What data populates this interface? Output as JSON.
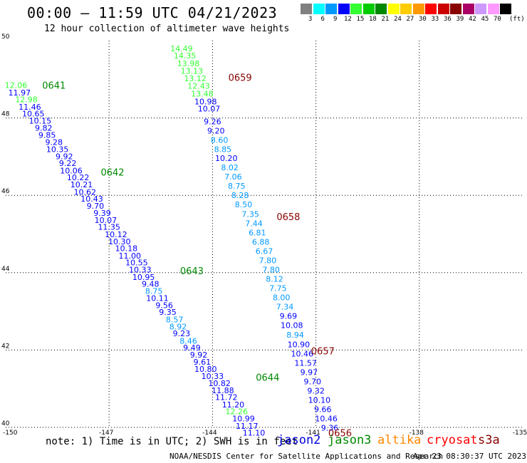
{
  "header": {
    "title": "00:00 — 11:59 UTC 04/21/2023",
    "subtitle": "12 hour collection of altimeter wave heights"
  },
  "legend": {
    "bins": [
      {
        "label": "3",
        "color": "#808080"
      },
      {
        "label": "6",
        "color": "#00ffff"
      },
      {
        "label": "9",
        "color": "#0099ff"
      },
      {
        "label": "12",
        "color": "#0000ff"
      },
      {
        "label": "15",
        "color": "#33ff33"
      },
      {
        "label": "18",
        "color": "#00cc00"
      },
      {
        "label": "21",
        "color": "#008800"
      },
      {
        "label": "24",
        "color": "#ffff00"
      },
      {
        "label": "27",
        "color": "#ffcc00"
      },
      {
        "label": "30",
        "color": "#ff9900"
      },
      {
        "label": "33",
        "color": "#ff0000"
      },
      {
        "label": "36",
        "color": "#cc0000"
      },
      {
        "label": "39",
        "color": "#880000"
      },
      {
        "label": "42",
        "color": "#aa0066"
      },
      {
        "label": "45",
        "color": "#cc99ff"
      },
      {
        "label": "70",
        "color": "#ff99ff"
      },
      {
        "label": "",
        "color": "#000000"
      }
    ],
    "unit": "(ft)"
  },
  "footer": {
    "note": "note: 1) Time is in UTC; 2) SWH is in feet",
    "credit": "NOAA/NESDIS Center for Satellite Applications and Research",
    "stamp": "Apr 23 08:30:37 UTC 2023",
    "satellites": [
      {
        "name": "jason2",
        "color": "#0000dd"
      },
      {
        "name": "jason3",
        "color": "#008800"
      },
      {
        "name": "altika",
        "color": "#ff8800"
      },
      {
        "name": "cryosat",
        "color": "#ff0000"
      },
      {
        "name": "s3a",
        "color": "#880000"
      }
    ]
  },
  "chart_data": {
    "type": "scatter",
    "title": "00:00 — 11:59 UTC 04/21/2023",
    "subtitle": "12 hour collection of altimeter wave heights",
    "xlim": [
      -150,
      -135
    ],
    "ylim": [
      40,
      50
    ],
    "xticks": [
      "-150",
      "-147",
      "-144",
      "-141",
      "-138",
      "-135"
    ],
    "yticks": [
      "40",
      "42",
      "44",
      "46",
      "48",
      "50"
    ],
    "grid": true,
    "passes": [
      {
        "satellite": "jason3",
        "time_labels": [
          {
            "text": "0641",
            "x": -148.6,
            "y": 48.85
          },
          {
            "text": "0642",
            "x": -146.9,
            "y": 46.6
          },
          {
            "text": "0643",
            "x": -144.6,
            "y": 44.05
          },
          {
            "text": "0644",
            "x": -142.4,
            "y": 41.3
          }
        ],
        "points": [
          {
            "x": -149.7,
            "y": 48.85,
            "v": "12.06"
          },
          {
            "x": -149.6,
            "y": 48.66,
            "v": "11.97"
          },
          {
            "x": -149.4,
            "y": 48.48,
            "v": "12.98"
          },
          {
            "x": -149.3,
            "y": 48.29,
            "v": "11.46"
          },
          {
            "x": -149.2,
            "y": 48.11,
            "v": "10.65"
          },
          {
            "x": -149.0,
            "y": 47.93,
            "v": "10.15"
          },
          {
            "x": -148.9,
            "y": 47.74,
            "v": "9.82"
          },
          {
            "x": -148.8,
            "y": 47.56,
            "v": "9.85"
          },
          {
            "x": -148.6,
            "y": 47.38,
            "v": "9.28"
          },
          {
            "x": -148.5,
            "y": 47.19,
            "v": "10.35"
          },
          {
            "x": -148.3,
            "y": 47.01,
            "v": "9.92"
          },
          {
            "x": -148.2,
            "y": 46.83,
            "v": "9.22"
          },
          {
            "x": -148.1,
            "y": 46.64,
            "v": "10.06"
          },
          {
            "x": -147.9,
            "y": 46.46,
            "v": "10.22"
          },
          {
            "x": -147.8,
            "y": 46.28,
            "v": "10.21"
          },
          {
            "x": -147.7,
            "y": 46.09,
            "v": "10.62"
          },
          {
            "x": -147.5,
            "y": 45.91,
            "v": "10.43"
          },
          {
            "x": -147.4,
            "y": 45.73,
            "v": "9.70"
          },
          {
            "x": -147.2,
            "y": 45.54,
            "v": "9.39"
          },
          {
            "x": -147.1,
            "y": 45.36,
            "v": "10.07"
          },
          {
            "x": -147.0,
            "y": 45.18,
            "v": "11.35"
          },
          {
            "x": -146.8,
            "y": 44.99,
            "v": "10.12"
          },
          {
            "x": -146.7,
            "y": 44.81,
            "v": "10.30"
          },
          {
            "x": -146.5,
            "y": 44.63,
            "v": "10.18"
          },
          {
            "x": -146.4,
            "y": 44.44,
            "v": "11.00"
          },
          {
            "x": -146.2,
            "y": 44.26,
            "v": "10.55"
          },
          {
            "x": -146.1,
            "y": 44.08,
            "v": "10.33"
          },
          {
            "x": -146.0,
            "y": 43.89,
            "v": "10.95"
          },
          {
            "x": -145.8,
            "y": 43.71,
            "v": "9.48"
          },
          {
            "x": -145.7,
            "y": 43.53,
            "v": "8.75"
          },
          {
            "x": -145.6,
            "y": 43.34,
            "v": "10.11"
          },
          {
            "x": -145.4,
            "y": 43.16,
            "v": "9.56"
          },
          {
            "x": -145.3,
            "y": 42.98,
            "v": "9.35"
          },
          {
            "x": -145.1,
            "y": 42.79,
            "v": "8.57"
          },
          {
            "x": -145.0,
            "y": 42.61,
            "v": "8.92"
          },
          {
            "x": -144.9,
            "y": 42.43,
            "v": "9.23"
          },
          {
            "x": -144.7,
            "y": 42.24,
            "v": "8.46"
          },
          {
            "x": -144.6,
            "y": 42.06,
            "v": "9.49"
          },
          {
            "x": -144.4,
            "y": 41.88,
            "v": "9.92"
          },
          {
            "x": -144.3,
            "y": 41.69,
            "v": "9.61"
          },
          {
            "x": -144.2,
            "y": 41.51,
            "v": "10.80"
          },
          {
            "x": -144.0,
            "y": 41.33,
            "v": "10.33"
          },
          {
            "x": -143.8,
            "y": 41.14,
            "v": "10.82"
          },
          {
            "x": -143.7,
            "y": 40.96,
            "v": "11.88"
          },
          {
            "x": -143.6,
            "y": 40.78,
            "v": "11.72"
          },
          {
            "x": -143.4,
            "y": 40.59,
            "v": "11.20"
          },
          {
            "x": -143.3,
            "y": 40.41,
            "v": "12.26"
          },
          {
            "x": -143.1,
            "y": 40.23,
            "v": "10.99"
          },
          {
            "x": -143.0,
            "y": 40.04,
            "v": "11.17"
          },
          {
            "x": -142.8,
            "y": 39.86,
            "v": "11.10"
          }
        ]
      },
      {
        "satellite": "s3a",
        "time_labels": [
          {
            "text": "0659",
            "x": -143.2,
            "y": 49.05
          },
          {
            "text": "0658",
            "x": -141.8,
            "y": 45.45
          },
          {
            "text": "0657",
            "x": -140.8,
            "y": 41.98
          },
          {
            "text": "0656",
            "x": -140.3,
            "y": 39.86
          }
        ],
        "points": [
          {
            "x": -144.9,
            "y": 49.8,
            "v": "14.49"
          },
          {
            "x": -144.8,
            "y": 49.61,
            "v": "14.35"
          },
          {
            "x": -144.7,
            "y": 49.41,
            "v": "13.98"
          },
          {
            "x": -144.6,
            "y": 49.22,
            "v": "13.13"
          },
          {
            "x": -144.5,
            "y": 49.02,
            "v": "13.12"
          },
          {
            "x": -144.4,
            "y": 48.83,
            "v": "12.43"
          },
          {
            "x": -144.3,
            "y": 48.63,
            "v": "13.48"
          },
          {
            "x": -144.2,
            "y": 48.43,
            "v": "10.98"
          },
          {
            "x": -144.1,
            "y": 48.24,
            "v": "10.07"
          },
          {
            "x": -144.0,
            "y": 47.91,
            "v": "9.26"
          },
          {
            "x": -143.9,
            "y": 47.67,
            "v": "9.20"
          },
          {
            "x": -143.8,
            "y": 47.43,
            "v": "8.60"
          },
          {
            "x": -143.7,
            "y": 47.19,
            "v": "8.85"
          },
          {
            "x": -143.6,
            "y": 46.96,
            "v": "10.20"
          },
          {
            "x": -143.5,
            "y": 46.72,
            "v": "8.02"
          },
          {
            "x": -143.4,
            "y": 46.48,
            "v": "7.06"
          },
          {
            "x": -143.3,
            "y": 46.24,
            "v": "8.75"
          },
          {
            "x": -143.2,
            "y": 46.0,
            "v": "8.28"
          },
          {
            "x": -143.1,
            "y": 45.76,
            "v": "8.50"
          },
          {
            "x": -142.9,
            "y": 45.52,
            "v": "7.35"
          },
          {
            "x": -142.8,
            "y": 45.28,
            "v": "7.44"
          },
          {
            "x": -142.7,
            "y": 45.04,
            "v": "6.81"
          },
          {
            "x": -142.6,
            "y": 44.8,
            "v": "6.88"
          },
          {
            "x": -142.5,
            "y": 44.56,
            "v": "6.67"
          },
          {
            "x": -142.4,
            "y": 44.32,
            "v": "7.80"
          },
          {
            "x": -142.3,
            "y": 44.08,
            "v": "7.80"
          },
          {
            "x": -142.2,
            "y": 43.84,
            "v": "8.12"
          },
          {
            "x": -142.1,
            "y": 43.6,
            "v": "7.75"
          },
          {
            "x": -142.0,
            "y": 43.36,
            "v": "8.00"
          },
          {
            "x": -141.9,
            "y": 43.12,
            "v": "7.34"
          },
          {
            "x": -141.8,
            "y": 42.88,
            "v": "9.69"
          },
          {
            "x": -141.7,
            "y": 42.64,
            "v": "10.08"
          },
          {
            "x": -141.6,
            "y": 42.39,
            "v": "8.94"
          },
          {
            "x": -141.5,
            "y": 42.15,
            "v": "10.90"
          },
          {
            "x": -141.4,
            "y": 41.91,
            "v": "10.46"
          },
          {
            "x": -141.3,
            "y": 41.67,
            "v": "11.57"
          },
          {
            "x": -141.2,
            "y": 41.43,
            "v": "9.97"
          },
          {
            "x": -141.1,
            "y": 41.19,
            "v": "9.70"
          },
          {
            "x": -141.0,
            "y": 40.95,
            "v": "9.32"
          },
          {
            "x": -140.9,
            "y": 40.71,
            "v": "10.10"
          },
          {
            "x": -140.8,
            "y": 40.47,
            "v": "9.66"
          },
          {
            "x": -140.7,
            "y": 40.23,
            "v": "10.46"
          },
          {
            "x": -140.6,
            "y": 39.99,
            "v": "9.36"
          }
        ]
      }
    ]
  }
}
